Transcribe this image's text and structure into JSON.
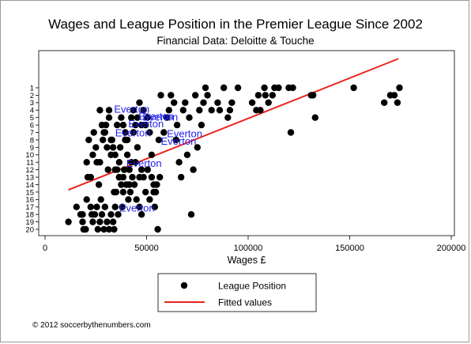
{
  "chart_data": {
    "type": "scatter",
    "title": "Wages and League Position in the Premier League Since 2002",
    "subtitle": "Financial Data: Deloitte & Touche",
    "xlabel": "Wages £",
    "ylabel": "",
    "xlim": [
      0,
      200000
    ],
    "ylim": [
      20,
      1
    ],
    "y_reversed": true,
    "x_ticks": [
      0,
      50000,
      100000,
      150000,
      200000
    ],
    "x_tick_labels": [
      "0",
      "50000",
      "100000",
      "150000",
      "200000"
    ],
    "y_ticks": [
      1,
      2,
      3,
      4,
      5,
      6,
      7,
      8,
      9,
      10,
      11,
      12,
      13,
      14,
      15,
      16,
      17,
      18,
      19,
      20
    ],
    "y_tick_labels": [
      "1",
      "2",
      "3",
      "4",
      "5",
      "6",
      "7",
      "8",
      "9",
      "10",
      "11",
      "12",
      "13",
      "14",
      "15",
      "16",
      "17",
      "18",
      "19",
      "20"
    ],
    "grid": false,
    "legend_placement": "bottom",
    "colors": {
      "points": "#000000",
      "fit_line": "#e8261d",
      "annotations": "#2222ee"
    },
    "series": [
      {
        "name": "League Position",
        "kind": "scatter",
        "points": [
          [
            11500,
            19
          ],
          [
            15500,
            17
          ],
          [
            17500,
            18
          ],
          [
            18500,
            18
          ],
          [
            18500,
            19
          ],
          [
            19000,
            20
          ],
          [
            20000,
            20
          ],
          [
            20500,
            16
          ],
          [
            21000,
            13
          ],
          [
            22500,
            17
          ],
          [
            23500,
            19
          ],
          [
            23000,
            18
          ],
          [
            24500,
            18
          ],
          [
            25500,
            17
          ],
          [
            26000,
            20
          ],
          [
            27000,
            19
          ],
          [
            27500,
            16
          ],
          [
            28000,
            18
          ],
          [
            29000,
            20
          ],
          [
            29500,
            17
          ],
          [
            30500,
            19
          ],
          [
            31500,
            20
          ],
          [
            32500,
            18
          ],
          [
            33500,
            19
          ],
          [
            34000,
            20
          ],
          [
            34500,
            17
          ],
          [
            35000,
            15
          ],
          [
            36000,
            18
          ],
          [
            36500,
            13
          ],
          [
            37500,
            14
          ],
          [
            38000,
            17
          ],
          [
            38500,
            15
          ],
          [
            39000,
            12
          ],
          [
            40000,
            14
          ],
          [
            41000,
            16
          ],
          [
            42000,
            15
          ],
          [
            43000,
            13
          ],
          [
            44000,
            14
          ],
          [
            45000,
            16
          ],
          [
            46500,
            17
          ],
          [
            47500,
            18
          ],
          [
            20500,
            11
          ],
          [
            21500,
            8
          ],
          [
            22500,
            13
          ],
          [
            23500,
            10
          ],
          [
            24000,
            7
          ],
          [
            25000,
            9
          ],
          [
            25500,
            11
          ],
          [
            26500,
            14
          ],
          [
            27000,
            11
          ],
          [
            28000,
            6
          ],
          [
            28500,
            8
          ],
          [
            29500,
            7
          ],
          [
            30500,
            9
          ],
          [
            31000,
            12
          ],
          [
            31500,
            5
          ],
          [
            32500,
            10
          ],
          [
            33000,
            8
          ],
          [
            34000,
            15
          ],
          [
            34500,
            12
          ],
          [
            35500,
            6
          ],
          [
            36500,
            11
          ],
          [
            37000,
            9
          ],
          [
            38500,
            13
          ],
          [
            39500,
            8
          ],
          [
            40500,
            10
          ],
          [
            41500,
            12
          ],
          [
            42500,
            5
          ],
          [
            43500,
            7
          ],
          [
            44500,
            11
          ],
          [
            45500,
            9
          ],
          [
            46500,
            3
          ],
          [
            47500,
            6
          ],
          [
            48500,
            13
          ],
          [
            49500,
            15
          ],
          [
            50500,
            12
          ],
          [
            51500,
            16
          ],
          [
            52500,
            10
          ],
          [
            53500,
            14
          ],
          [
            54500,
            15
          ],
          [
            55500,
            20
          ],
          [
            56000,
            8
          ],
          [
            27000,
            4
          ],
          [
            29000,
            7
          ],
          [
            30000,
            6
          ],
          [
            31500,
            4
          ],
          [
            32500,
            8
          ],
          [
            33500,
            9
          ],
          [
            34500,
            10
          ],
          [
            35500,
            12
          ],
          [
            36500,
            13
          ],
          [
            37500,
            5
          ],
          [
            38500,
            6
          ],
          [
            39500,
            7
          ],
          [
            40500,
            8
          ],
          [
            41500,
            14
          ],
          [
            42500,
            11
          ],
          [
            43500,
            4
          ],
          [
            44500,
            6
          ],
          [
            45500,
            5
          ],
          [
            46500,
            13
          ],
          [
            47500,
            12
          ],
          [
            48500,
            4
          ],
          [
            49500,
            6
          ],
          [
            50500,
            5
          ],
          [
            51500,
            7
          ],
          [
            52500,
            13
          ],
          [
            53500,
            15
          ],
          [
            54000,
            17
          ],
          [
            55000,
            14
          ],
          [
            56500,
            13
          ],
          [
            57000,
            2
          ],
          [
            58500,
            7
          ],
          [
            60000,
            5
          ],
          [
            61000,
            4
          ],
          [
            62000,
            2
          ],
          [
            63500,
            3
          ],
          [
            64500,
            8
          ],
          [
            65000,
            6
          ],
          [
            66000,
            11
          ],
          [
            67000,
            13
          ],
          [
            68000,
            4
          ],
          [
            69000,
            3
          ],
          [
            70000,
            10
          ],
          [
            71000,
            5
          ],
          [
            72000,
            18
          ],
          [
            73000,
            12
          ],
          [
            74000,
            2
          ],
          [
            75000,
            9
          ],
          [
            76000,
            4
          ],
          [
            77000,
            6
          ],
          [
            78000,
            3
          ],
          [
            79000,
            1
          ],
          [
            80000,
            2
          ],
          [
            82000,
            4
          ],
          [
            85000,
            3
          ],
          [
            86000,
            4
          ],
          [
            88000,
            1
          ],
          [
            90000,
            5
          ],
          [
            91000,
            4
          ],
          [
            92000,
            3
          ],
          [
            95000,
            1
          ],
          [
            102000,
            3
          ],
          [
            104000,
            4
          ],
          [
            105000,
            2
          ],
          [
            106000,
            4
          ],
          [
            108000,
            1
          ],
          [
            108500,
            2
          ],
          [
            110000,
            3
          ],
          [
            112000,
            2
          ],
          [
            113000,
            1
          ],
          [
            115000,
            1
          ],
          [
            120000,
            1
          ],
          [
            121000,
            7
          ],
          [
            122000,
            1
          ],
          [
            131000,
            2
          ],
          [
            132000,
            2
          ],
          [
            133000,
            5
          ],
          [
            152000,
            1
          ],
          [
            167000,
            3
          ],
          [
            170000,
            2
          ],
          [
            172000,
            2
          ],
          [
            173500,
            3
          ],
          [
            174500,
            1
          ]
        ]
      },
      {
        "name": "Fitted values",
        "kind": "line",
        "x": [
          11500,
          174000
        ],
        "y": [
          14.7,
          -2.9
        ]
      }
    ],
    "annotations": [
      {
        "text": "Everton",
        "x": 34000,
        "y": 3.9
      },
      {
        "text": "Everton",
        "x": 46000,
        "y": 4.9
      },
      {
        "text": "Everton",
        "x": 48000,
        "y": 5.0
      },
      {
        "text": "Everton",
        "x": 41000,
        "y": 5.9
      },
      {
        "text": "Everton",
        "x": 34500,
        "y": 7.1
      },
      {
        "text": "Everton",
        "x": 60000,
        "y": 7.2
      },
      {
        "text": "Everton",
        "x": 57000,
        "y": 8.2
      },
      {
        "text": "Everton",
        "x": 40000,
        "y": 11.2
      },
      {
        "text": "Everton",
        "x": 36500,
        "y": 17.2
      }
    ],
    "legend": [
      {
        "label": "League Position",
        "marker": "dot"
      },
      {
        "label": "Fitted values",
        "marker": "line"
      }
    ]
  },
  "footer": {
    "copyright": "© 2012 soccerbythenumbers.com"
  }
}
